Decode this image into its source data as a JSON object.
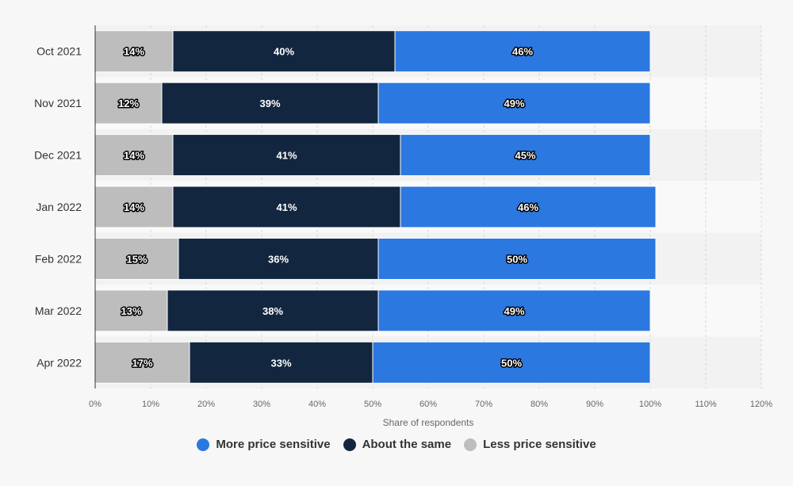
{
  "chart_data": {
    "type": "bar",
    "orientation": "horizontal",
    "stacked": true,
    "categories": [
      "Oct 2021",
      "Nov 2021",
      "Dec 2021",
      "Jan 2022",
      "Feb 2022",
      "Mar 2022",
      "Apr 2022"
    ],
    "series": [
      {
        "name": "Less price sensitive",
        "color": "#bdbdbd",
        "values": [
          14,
          12,
          14,
          14,
          15,
          13,
          17
        ]
      },
      {
        "name": "About the same",
        "color": "#13263f",
        "values": [
          40,
          39,
          41,
          41,
          36,
          38,
          33
        ]
      },
      {
        "name": "More price sensitive",
        "color": "#2b78e0",
        "values": [
          46,
          49,
          45,
          46,
          50,
          49,
          50
        ]
      }
    ],
    "value_suffix": "%",
    "xlabel": "Share of respondents",
    "ylabel": "",
    "xlim": [
      0,
      120
    ],
    "xticks": [
      "0%",
      "10%",
      "20%",
      "30%",
      "40%",
      "50%",
      "60%",
      "70%",
      "80%",
      "90%",
      "100%",
      "110%",
      "120%"
    ],
    "grid": true,
    "legend_position": "bottom"
  },
  "legend": [
    {
      "label": "More price sensitive",
      "color": "#2b78e0"
    },
    {
      "label": "About the same",
      "color": "#13263f"
    },
    {
      "label": "Less price sensitive",
      "color": "#bdbdbd"
    }
  ]
}
